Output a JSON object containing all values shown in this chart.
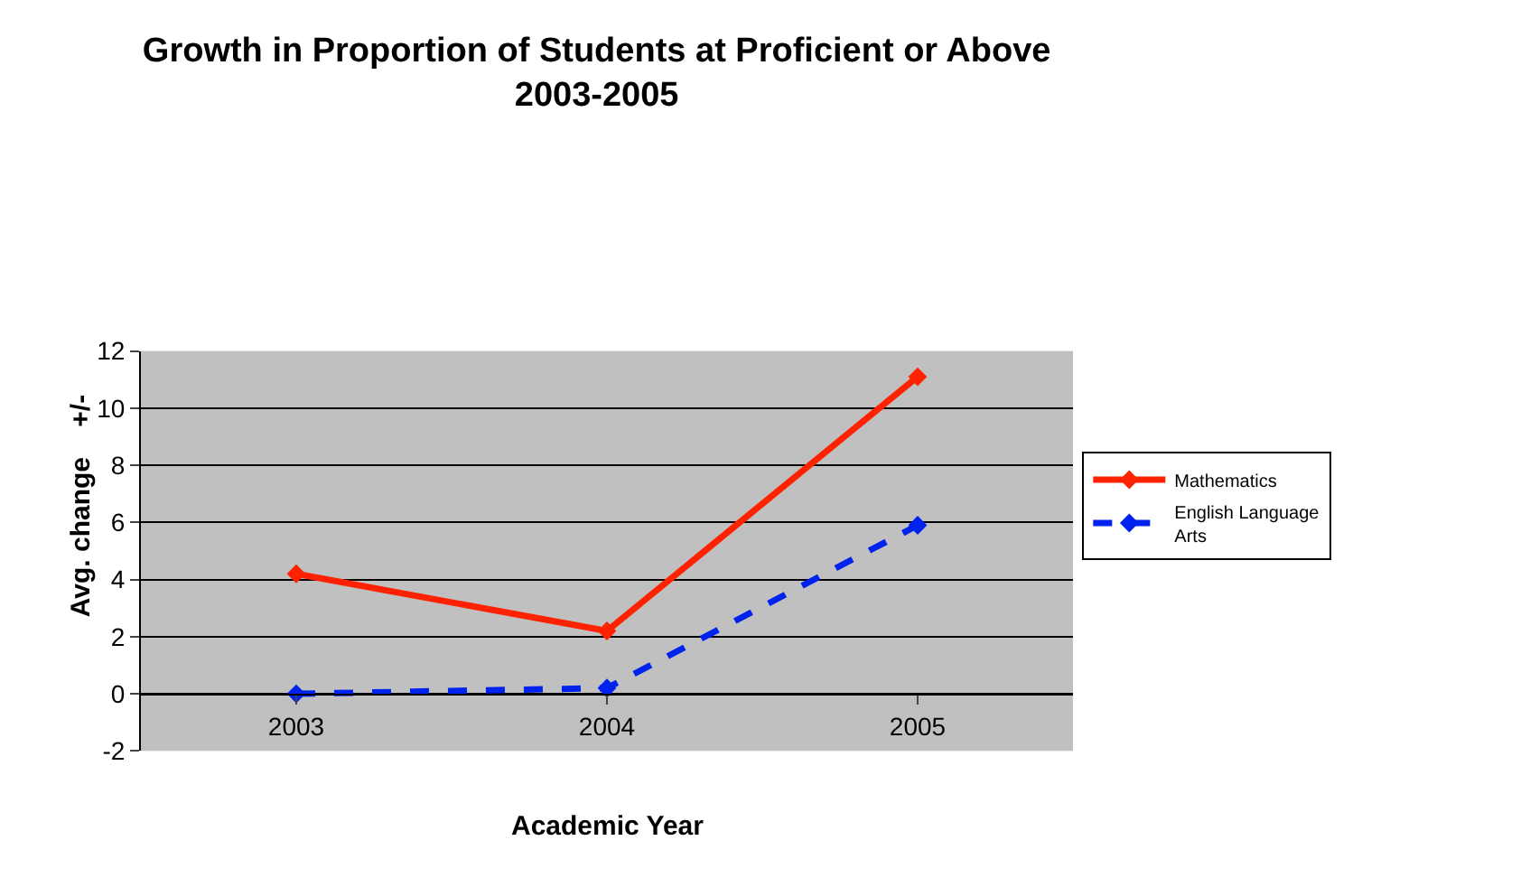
{
  "chart_data": {
    "type": "line",
    "title": "Growth in Proportion of Students at Proficient or Above\n2003-2005",
    "xlabel": "Academic Year",
    "ylabel": "Avg. change    +/-",
    "categories": [
      "2003",
      "2004",
      "2005"
    ],
    "series": [
      {
        "name": "Mathematics",
        "color": "#ff2200",
        "values": [
          4.2,
          2.2,
          11.1
        ],
        "line_style": "solid"
      },
      {
        "name": "English Language\nArts",
        "color": "#0022ee",
        "values": [
          0,
          0.2,
          5.9
        ],
        "line_style": "dashed"
      }
    ],
    "ylim": [
      -2,
      12
    ],
    "yticks": [
      -2,
      0,
      2,
      4,
      6,
      8,
      10,
      12
    ],
    "grid": "y",
    "legend": "right",
    "marker": "diamond"
  }
}
